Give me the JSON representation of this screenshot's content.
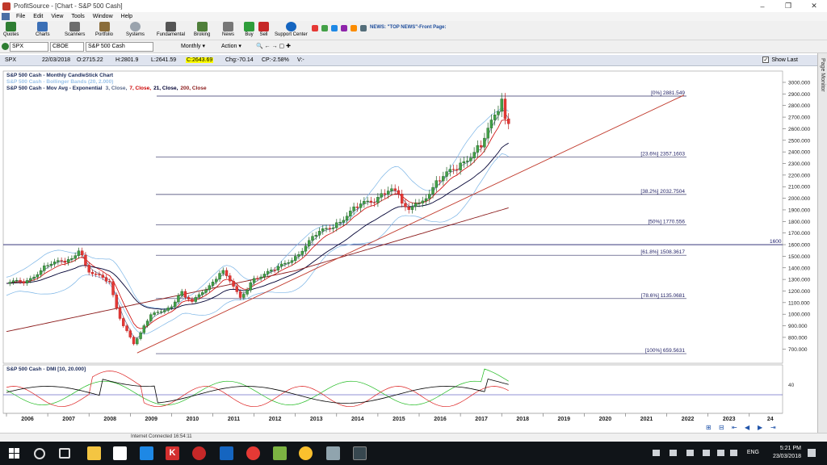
{
  "window": {
    "title": "ProfitSource - [Chart - S&P 500 Cash]"
  },
  "menu": [
    "File",
    "Edit",
    "View",
    "Tools",
    "Window",
    "Help"
  ],
  "toolbar": {
    "buttons": [
      "Quotes",
      "Charts",
      "Scanners",
      "Portfolio",
      "Systems",
      "Fundamental",
      "Broking",
      "News",
      "Buy",
      "Sell",
      "Support Center"
    ],
    "news_ticker": "NEWS: \"TOP NEWS\"-Front Page:"
  },
  "symbol_bar": {
    "symbol": "SPX",
    "exchange": "CBOE",
    "name": "S&P 500 Cash",
    "period": "Monthly",
    "action": "Action"
  },
  "info_bar": {
    "symbol": "SPX",
    "date": "22/03/2018",
    "open": "O:2715.22",
    "high": "H:2801.9",
    "low": "L:2641.59",
    "close": "C:2643.69",
    "change": "Chg:-70.14",
    "change_pct": "CP:-2.58%",
    "volume": "V:-",
    "show_last": "Show Last"
  },
  "chart_data": {
    "type": "candlestick",
    "legend": {
      "line1": "S&P 500 Cash - Monthly CandleStick Chart",
      "line2": "S&P 500 Cash - Bollinger Bands (20, 2.000)",
      "line3_prefix": "S&P 500 Cash - Mov Avg - Exponential",
      "ema_params": [
        "3, Close,",
        "7, Close,",
        "21, Close,",
        "200, Close"
      ],
      "colors": {
        "ema3": "#5b6b8c",
        "ema7": "#cc0000",
        "ema21": "#000033",
        "ema200": "#8b1a1a",
        "bollinger": "#7ab4e6"
      }
    },
    "x_labels": [
      "2006",
      "2007",
      "2008",
      "2009",
      "2010",
      "2011",
      "2012",
      "2013",
      "2014",
      "2015",
      "2016",
      "2017",
      "2018",
      "2019",
      "2020",
      "2021",
      "2022",
      "2023",
      "24"
    ],
    "y_ticks": [
      3000,
      2900,
      2800,
      2700,
      2600,
      2500,
      2400,
      2300,
      2200,
      2100,
      2000,
      1900,
      1800,
      1700,
      1600,
      1500,
      1400,
      1300,
      1200,
      1100,
      1000,
      900,
      800,
      700
    ],
    "y_labels": [
      "3000.000",
      "2900.000",
      "2800.000",
      "2700.000",
      "2600.000",
      "2500.000",
      "2400.000",
      "2300.000",
      "2200.000",
      "2100.000",
      "2000.000",
      "1900.000",
      "1800.000",
      "1700.000",
      "1600.000",
      "1500.000",
      "1400.000",
      "1300.000",
      "1200.000",
      "1100.000",
      "1000.000",
      "900.000",
      "800.000",
      "700.000"
    ],
    "fib_levels": [
      {
        "label": "[0%] 2881.549",
        "value": 2881.549
      },
      {
        "label": "[23.6%] 2357.1603",
        "value": 2357.1603
      },
      {
        "label": "[38.2%] 2032.7504",
        "value": 2032.7504
      },
      {
        "label": "[50%] 1770.556",
        "value": 1770.556
      },
      {
        "label": "[61.8%] 1508.3617",
        "value": 1508.3617
      },
      {
        "label": "[78.6%] 1135.0681",
        "value": 1135.0681
      },
      {
        "label": "[100%] 659.5631",
        "value": 659.5631
      }
    ],
    "horizontal_line": {
      "label": "1600",
      "value": 1600
    },
    "trendline": {
      "from": [
        "2009-03",
        666
      ],
      "to": [
        "2022-06",
        2890
      ]
    },
    "monthly_close_approx": [
      [
        "2006-01",
        1280
      ],
      [
        "2006-07",
        1276
      ],
      [
        "2007-01",
        1438
      ],
      [
        "2007-07",
        1455
      ],
      [
        "2007-10",
        1549
      ],
      [
        "2008-01",
        1378
      ],
      [
        "2008-07",
        1267
      ],
      [
        "2008-10",
        968
      ],
      [
        "2009-02",
        735
      ],
      [
        "2009-03",
        797
      ],
      [
        "2009-07",
        987
      ],
      [
        "2010-01",
        1073
      ],
      [
        "2010-04",
        1186
      ],
      [
        "2010-07",
        1101
      ],
      [
        "2011-01",
        1286
      ],
      [
        "2011-04",
        1363
      ],
      [
        "2011-09",
        1131
      ],
      [
        "2012-01",
        1312
      ],
      [
        "2012-07",
        1379
      ],
      [
        "2013-01",
        1498
      ],
      [
        "2013-07",
        1686
      ],
      [
        "2014-01",
        1782
      ],
      [
        "2014-07",
        1930
      ],
      [
        "2015-01",
        1995
      ],
      [
        "2015-05",
        2107
      ],
      [
        "2015-09",
        1920
      ],
      [
        "2016-01",
        1940
      ],
      [
        "2016-07",
        2173
      ],
      [
        "2017-01",
        2279
      ],
      [
        "2017-07",
        2470
      ],
      [
        "2018-01",
        2823
      ],
      [
        "2018-02",
        2713
      ],
      [
        "2018-03",
        2643
      ]
    ],
    "dmi": {
      "title": "S&P 500 Cash - DMI [10, 20.000]",
      "y_label": "40",
      "series_colors": {
        "adx": "#000000",
        "plus_di": "#22bb22",
        "minus_di": "#dd2222",
        "level": "#2222aa"
      }
    }
  },
  "status_bar": {
    "text": "Internet Connected  16:54:11"
  },
  "taskbar": {
    "time": "5:21 PM",
    "date": "23/03/2018",
    "lang": "ENG"
  }
}
